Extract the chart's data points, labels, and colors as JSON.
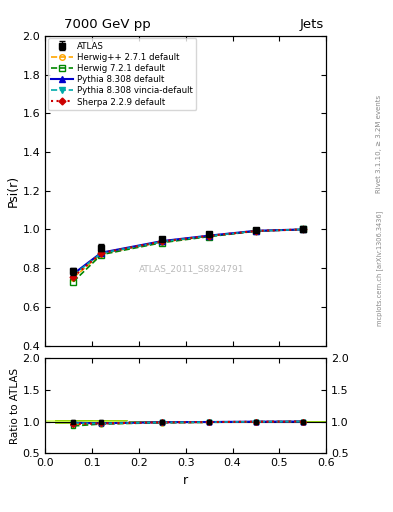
{
  "title_left": "7000 GeV pp",
  "title_right": "Jets",
  "ylabel_main": "Psi(r)",
  "ylabel_ratio": "Ratio to ATLAS",
  "xlabel": "r",
  "right_label_top": "Rivet 3.1.10, ≥ 3.2M events",
  "right_label_bot": "mcplots.cern.ch [arXiv:1306.3436]",
  "watermark": "ATLAS_2011_S8924791",
  "main_ylim": [
    0.4,
    2.0
  ],
  "ratio_ylim": [
    0.5,
    2.0
  ],
  "xlim": [
    0.0,
    0.6
  ],
  "x_data": [
    0.06,
    0.12,
    0.25,
    0.35,
    0.45,
    0.55
  ],
  "atlas_y": [
    0.785,
    0.905,
    0.95,
    0.975,
    0.995,
    1.0
  ],
  "atlas_yerr": [
    0.018,
    0.018,
    0.012,
    0.009,
    0.006,
    0.004
  ],
  "herwig271_y": [
    0.75,
    0.875,
    0.935,
    0.965,
    0.992,
    1.0
  ],
  "herwig721_y": [
    0.73,
    0.87,
    0.932,
    0.963,
    0.991,
    1.0
  ],
  "pythia8308_y": [
    0.77,
    0.88,
    0.94,
    0.968,
    0.993,
    1.0
  ],
  "pythia8308v_y": [
    0.765,
    0.877,
    0.937,
    0.966,
    0.992,
    1.0
  ],
  "sherpa229_y": [
    0.755,
    0.878,
    0.938,
    0.967,
    0.992,
    1.0
  ],
  "atlas_color": "#000000",
  "herwig271_color": "#FFA500",
  "herwig721_color": "#008800",
  "pythia8308_color": "#0000CC",
  "pythia8308v_color": "#00AAAA",
  "sherpa229_color": "#CC0000",
  "band_color": "#CCFF44",
  "band_edge_color": "#88CC00",
  "main_yticks": [
    0.4,
    0.6,
    0.8,
    1.0,
    1.2,
    1.4,
    1.6,
    1.8,
    2.0
  ],
  "ratio_yticks": [
    0.5,
    1.0,
    1.5,
    2.0
  ],
  "x_ticks": [
    0.0,
    0.1,
    0.2,
    0.3,
    0.4,
    0.5,
    0.6
  ]
}
